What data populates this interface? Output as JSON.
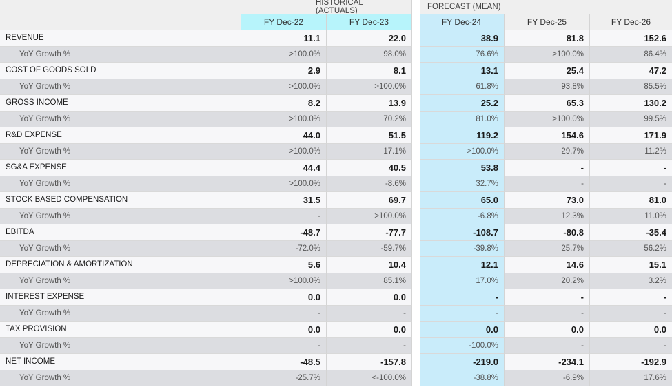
{
  "groups": {
    "historical": "HISTORICAL (ACTUALS)",
    "forecast": "FORECAST (MEAN)"
  },
  "columns": [
    "FY Dec-22",
    "FY Dec-23",
    "FY Dec-24",
    "FY Dec-25",
    "FY Dec-26"
  ],
  "rows": [
    {
      "label": "REVENUE",
      "values": [
        "11.1",
        "22.0",
        "38.9",
        "81.8",
        "152.6"
      ],
      "growth": {
        "label": "YoY Growth %",
        "values": [
          ">100.0%",
          "98.0%",
          "76.6%",
          ">100.0%",
          "86.4%"
        ]
      }
    },
    {
      "label": "COST OF GOODS SOLD",
      "values": [
        "2.9",
        "8.1",
        "13.1",
        "25.4",
        "47.2"
      ],
      "growth": {
        "label": "YoY Growth %",
        "values": [
          ">100.0%",
          ">100.0%",
          "61.8%",
          "93.8%",
          "85.5%"
        ]
      }
    },
    {
      "label": "GROSS INCOME",
      "values": [
        "8.2",
        "13.9",
        "25.2",
        "65.3",
        "130.2"
      ],
      "growth": {
        "label": "YoY Growth %",
        "values": [
          ">100.0%",
          "70.2%",
          "81.0%",
          ">100.0%",
          "99.5%"
        ]
      }
    },
    {
      "label": "R&D EXPENSE",
      "values": [
        "44.0",
        "51.5",
        "119.2",
        "154.6",
        "171.9"
      ],
      "growth": {
        "label": "YoY Growth %",
        "values": [
          ">100.0%",
          "17.1%",
          ">100.0%",
          "29.7%",
          "11.2%"
        ]
      }
    },
    {
      "label": "SG&A EXPENSE",
      "values": [
        "44.4",
        "40.5",
        "53.8",
        "-",
        "-"
      ],
      "growth": {
        "label": "YoY Growth %",
        "values": [
          ">100.0%",
          "-8.6%",
          "32.7%",
          "-",
          "-"
        ]
      }
    },
    {
      "label": "STOCK BASED COMPENSATION",
      "values": [
        "31.5",
        "69.7",
        "65.0",
        "73.0",
        "81.0"
      ],
      "growth": {
        "label": "YoY Growth %",
        "values": [
          "-",
          ">100.0%",
          "-6.8%",
          "12.3%",
          "11.0%"
        ]
      }
    },
    {
      "label": "EBITDA",
      "values": [
        "-48.7",
        "-77.7",
        "-108.7",
        "-80.8",
        "-35.4"
      ],
      "growth": {
        "label": "YoY Growth %",
        "values": [
          "-72.0%",
          "-59.7%",
          "-39.8%",
          "25.7%",
          "56.2%"
        ]
      }
    },
    {
      "label": "DEPRECIATION & AMORTIZATION",
      "values": [
        "5.6",
        "10.4",
        "12.1",
        "14.6",
        "15.1"
      ],
      "growth": {
        "label": "YoY Growth %",
        "values": [
          ">100.0%",
          "85.1%",
          "17.0%",
          "20.2%",
          "3.2%"
        ]
      }
    },
    {
      "label": "INTEREST EXPENSE",
      "values": [
        "0.0",
        "0.0",
        "-",
        "-",
        "-"
      ],
      "growth": {
        "label": "YoY Growth %",
        "values": [
          "-",
          "-",
          "-",
          "-",
          "-"
        ]
      }
    },
    {
      "label": "TAX PROVISION",
      "values": [
        "0.0",
        "0.0",
        "0.0",
        "0.0",
        "0.0"
      ],
      "growth": {
        "label": "YoY Growth %",
        "values": [
          "-",
          "-",
          "-100.0%",
          "-",
          "-"
        ]
      }
    },
    {
      "label": "NET INCOME",
      "values": [
        "-48.5",
        "-157.8",
        "-219.0",
        "-234.1",
        "-192.9"
      ],
      "growth": {
        "label": "YoY Growth %",
        "values": [
          "-25.7%",
          "<-100.0%",
          "-38.8%",
          "-6.9%",
          "17.6%"
        ]
      }
    }
  ],
  "colors": {
    "historical_header": "#b7f4fb",
    "forecast_highlight": "#c9ecfa",
    "growth_row": "#dcdde1",
    "main_row": "#f7f7f9"
  }
}
